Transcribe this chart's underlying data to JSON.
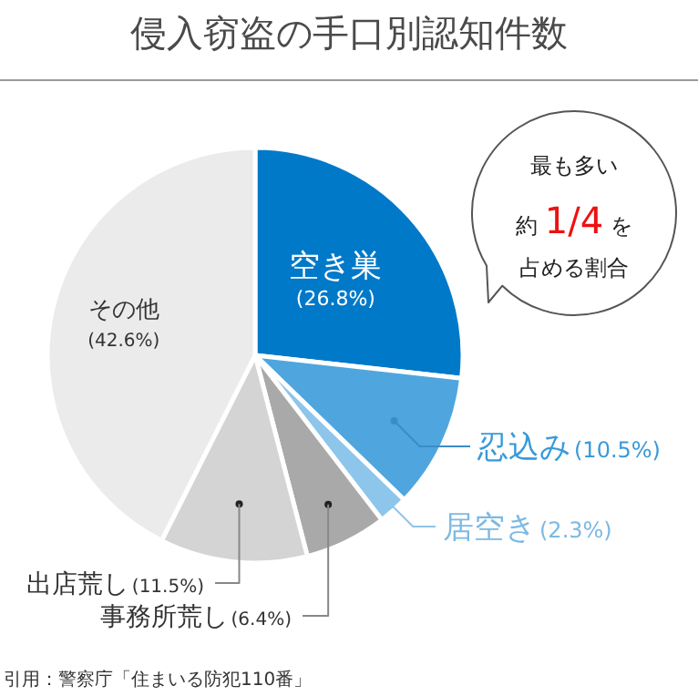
{
  "chart_data": {
    "type": "pie",
    "title": "侵入窃盗の手口別認知件数",
    "categories": [
      "空き巣",
      "忍込み",
      "居空き",
      "事務所荒し",
      "出店荒し",
      "その他"
    ],
    "values": [
      26.8,
      10.5,
      2.3,
      6.4,
      11.5,
      42.6
    ],
    "colors": [
      "#0079c9",
      "#4fa6de",
      "#8ec5ea",
      "#a9a9a9",
      "#d4d4d4",
      "#ebebeb"
    ],
    "value_labels": [
      "(26.8%)",
      "(10.5%)",
      "(2.3%)",
      "(6.4%)",
      "(11.5%)",
      "(42.6%)"
    ],
    "annotations": [
      "最も多い",
      "約",
      "1/4",
      "を",
      "占める割合",
      "引用：警察庁「住まいる防犯110番」"
    ]
  }
}
